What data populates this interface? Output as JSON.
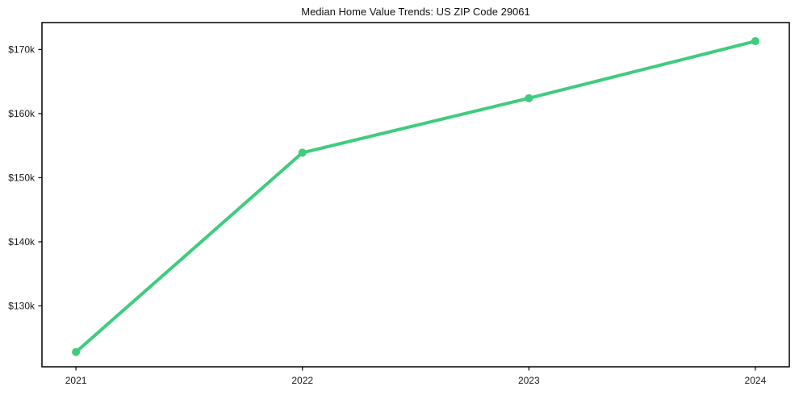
{
  "chart_data": {
    "type": "line",
    "title": "Median Home Value Trends: US ZIP Code 29061",
    "x": [
      2021,
      2022,
      2023,
      2024
    ],
    "x_tick_labels": [
      "2021",
      "2022",
      "2023",
      "2024"
    ],
    "series": [
      {
        "name": "Median home value",
        "values": [
          122800,
          153900,
          162400,
          171300
        ],
        "color": "#3ecc7d",
        "line_width": 4,
        "marker": "circle",
        "marker_radius": 5
      }
    ],
    "y_ticks": [
      {
        "value": 130000,
        "label": "$130k"
      },
      {
        "value": 140000,
        "label": "$140k"
      },
      {
        "value": 150000,
        "label": "$150k"
      },
      {
        "value": 160000,
        "label": "$160k"
      },
      {
        "value": 170000,
        "label": "$170k"
      }
    ],
    "xlim": [
      2020.85,
      2024.15
    ],
    "ylim": [
      120500,
      174200
    ],
    "xlabel": "",
    "ylabel": "",
    "grid": false,
    "legend": "none",
    "axis_color": "#000000",
    "tick_label_color": "#1a1a1a",
    "background": "#ffffff"
  }
}
